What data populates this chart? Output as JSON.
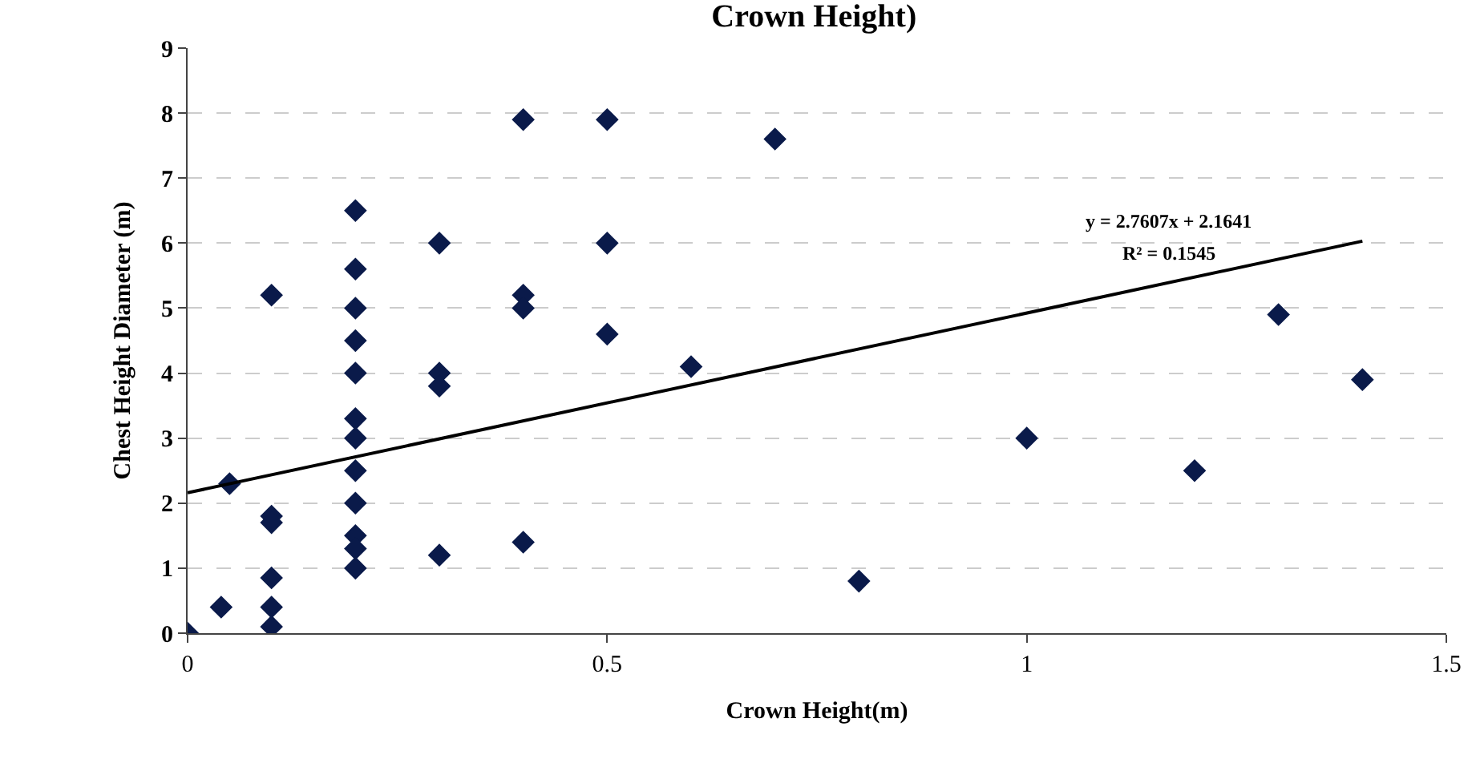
{
  "chart_data": {
    "type": "scatter",
    "title": "Crown Height)",
    "xlabel": "Crown Height(m)",
    "ylabel": "Chest Height Diameter (m)",
    "xlim": [
      0,
      1.5
    ],
    "xticks": [
      0,
      0.5,
      1,
      1.5
    ],
    "ylim": [
      0,
      9
    ],
    "yticks": [
      0,
      1,
      2,
      3,
      4,
      5,
      6,
      7,
      8,
      9
    ],
    "grid": "y",
    "marker": "diamond",
    "series": [
      {
        "color": "#0a1a4a",
        "x": [
          0,
          0.04,
          0.05,
          0.1,
          0.1,
          0.1,
          0.1,
          0.1,
          0.1,
          0.2,
          0.2,
          0.2,
          0.2,
          0.2,
          0.2,
          0.2,
          0.2,
          0.2,
          0.2,
          0.2,
          0.2,
          0.3,
          0.3,
          0.3,
          0.3,
          0.4,
          0.4,
          0.4,
          0.4,
          0.5,
          0.5,
          0.5,
          0.6,
          0.7,
          0.8,
          1.0,
          1.2,
          1.3,
          1.4
        ],
        "values": [
          0,
          0.4,
          2.3,
          5.2,
          1.8,
          1.7,
          0.85,
          0.4,
          0.1,
          6.5,
          5.6,
          5.0,
          4.5,
          4.0,
          3.3,
          3.0,
          2.5,
          2.0,
          1.5,
          1.3,
          1.0,
          6.0,
          4.0,
          3.8,
          1.2,
          7.9,
          5.2,
          5.0,
          1.4,
          7.9,
          6.0,
          4.6,
          4.1,
          7.6,
          0.8,
          3.0,
          2.5,
          4.9,
          3.9
        ]
      },
      {
        "type": "line",
        "marker": "none",
        "color": "#000000",
        "x": [
          0,
          1.4
        ],
        "values": [
          2.16,
          6.03
        ]
      }
    ],
    "annotations": [
      "y = 2.7607x + 2.1641",
      "R² = 0.1545"
    ]
  }
}
